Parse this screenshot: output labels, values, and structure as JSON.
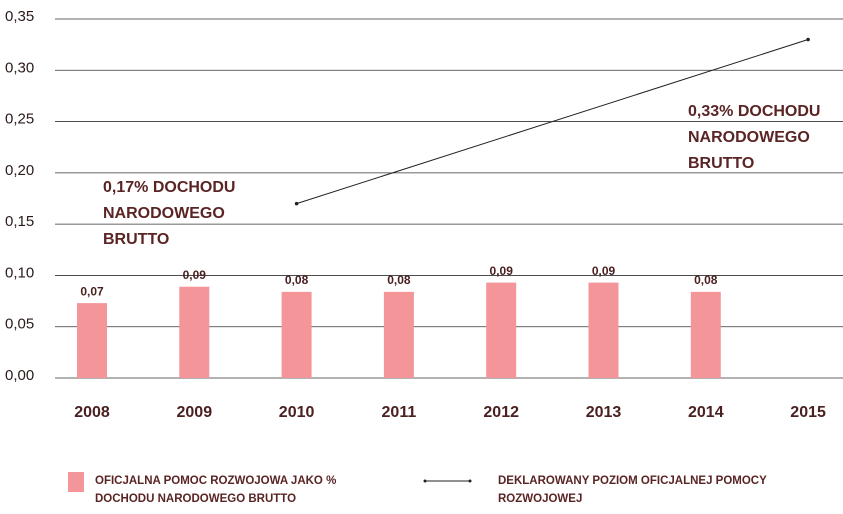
{
  "chart_data": {
    "type": "bar",
    "categories": [
      "2008",
      "2009",
      "2010",
      "2011",
      "2012",
      "2013",
      "2014",
      "2015"
    ],
    "series": [
      {
        "name": "OFICJALNA POMOC ROZWOJOWA JAKO % DOCHODU NARODOWEGO BRUTTO",
        "type": "bar",
        "color": "#f4959a",
        "values": [
          0.073,
          0.089,
          0.084,
          0.084,
          0.093,
          0.093,
          0.084,
          null
        ],
        "value_labels": [
          "0,07",
          "0,09",
          "0,08",
          "0,08",
          "0,09",
          "0,09",
          "0,08",
          null
        ]
      },
      {
        "name": "DEKLAROWANY POZIOM OFICJALNEJ POMOCY ROZWOJOWEJ",
        "type": "line",
        "color": "#222222",
        "x": [
          "2010",
          "2015"
        ],
        "values": [
          0.17,
          0.33
        ]
      }
    ],
    "annotations": [
      {
        "lines": [
          "0,17% DOCHODU",
          "NARODOWEGO",
          "BRUTTO"
        ]
      },
      {
        "lines": [
          "0,33% DOCHODU",
          "NARODOWEGO",
          "BRUTTO"
        ]
      }
    ],
    "ylim": [
      0,
      0.35
    ],
    "yticks": [
      {
        "value": 0,
        "label": "0,00"
      },
      {
        "value": 0.05,
        "label": "0,05"
      },
      {
        "value": 0.1,
        "label": "0,10"
      },
      {
        "value": 0.15,
        "label": "0,15"
      },
      {
        "value": 0.2,
        "label": "0,20"
      },
      {
        "value": 0.25,
        "label": "0,25"
      },
      {
        "value": 0.3,
        "label": "0,30"
      },
      {
        "value": 0.35,
        "label": "0,35"
      }
    ],
    "grid": true
  }
}
